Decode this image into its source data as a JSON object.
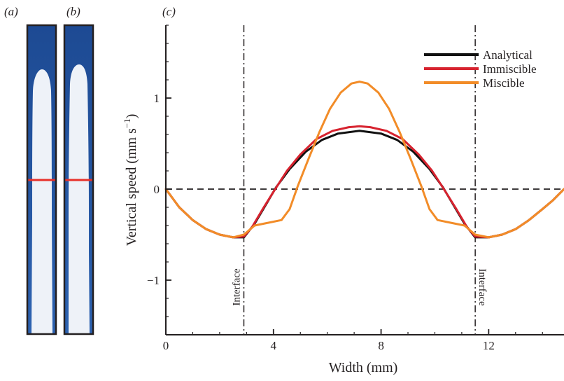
{
  "panels": {
    "a": {
      "label": "(a)"
    },
    "b": {
      "label": "(b)"
    },
    "c": {
      "label": "(c)"
    }
  },
  "colors": {
    "fluid_dark": "#1f4e96",
    "fluid_light": "#eef2f8",
    "marker_line": "#e8302a",
    "frame": "#231f20",
    "analytical": "#111111",
    "immiscible": "#d7232f",
    "miscible": "#f28c28"
  },
  "chart_data": {
    "type": "line",
    "xlabel": "Width (mm)",
    "ylabel_main": "Vertical speed (mm s",
    "ylabel_sup": "−1",
    "ylabel_close": ")",
    "xlim": [
      0,
      14.8
    ],
    "ylim": [
      -1.6,
      1.8
    ],
    "x_ticks": [
      0,
      4,
      8,
      12
    ],
    "x_tick_labels": [
      "0",
      "4",
      "8",
      "12"
    ],
    "y_ticks": [
      -1,
      0,
      1
    ],
    "y_tick_labels": [
      "−1",
      "0",
      "1"
    ],
    "zero_reference_line": true,
    "interfaces": [
      {
        "x": 2.9,
        "label": "Interface"
      },
      {
        "x": 11.5,
        "label": "Interface"
      }
    ],
    "legend_position": "top-right",
    "series": [
      {
        "name": "Analytical",
        "color": "#111111",
        "x": [
          0,
          0.5,
          1,
          1.5,
          2,
          2.5,
          2.9,
          3.3,
          3.7,
          4.1,
          4.6,
          5.2,
          5.8,
          6.4,
          7.2,
          8.0,
          8.6,
          9.2,
          9.8,
          10.3,
          10.7,
          11.1,
          11.5,
          12,
          12.5,
          13,
          13.5,
          14,
          14.4,
          14.8
        ],
        "y": [
          0,
          -0.2,
          -0.34,
          -0.44,
          -0.5,
          -0.53,
          -0.53,
          -0.38,
          -0.18,
          0.02,
          0.22,
          0.41,
          0.54,
          0.61,
          0.64,
          0.61,
          0.54,
          0.41,
          0.22,
          0.02,
          -0.18,
          -0.38,
          -0.53,
          -0.53,
          -0.5,
          -0.44,
          -0.34,
          -0.22,
          -0.12,
          0
        ]
      },
      {
        "name": "Immiscible",
        "color": "#d7232f",
        "x": [
          0,
          0.5,
          1,
          1.5,
          2,
          2.5,
          2.9,
          3.2,
          3.6,
          4.0,
          4.5,
          5.0,
          5.6,
          6.2,
          6.8,
          7.2,
          7.6,
          8.2,
          8.8,
          9.4,
          9.9,
          10.4,
          10.8,
          11.2,
          11.5,
          12,
          12.5,
          13,
          13.5,
          14,
          14.4,
          14.8
        ],
        "y": [
          0,
          -0.2,
          -0.34,
          -0.44,
          -0.5,
          -0.53,
          -0.52,
          -0.42,
          -0.22,
          -0.03,
          0.2,
          0.38,
          0.55,
          0.64,
          0.68,
          0.69,
          0.68,
          0.64,
          0.55,
          0.38,
          0.2,
          -0.03,
          -0.22,
          -0.42,
          -0.52,
          -0.53,
          -0.5,
          -0.44,
          -0.34,
          -0.22,
          -0.12,
          0
        ]
      },
      {
        "name": "Miscible",
        "color": "#f28c28",
        "x": [
          0,
          0.5,
          1,
          1.5,
          2,
          2.5,
          2.9,
          3.3,
          3.8,
          4.3,
          4.6,
          4.9,
          5.3,
          5.7,
          6.1,
          6.5,
          6.9,
          7.2,
          7.5,
          7.9,
          8.3,
          8.7,
          9.1,
          9.5,
          9.8,
          10.1,
          10.6,
          11.1,
          11.5,
          12,
          12.5,
          13,
          13.5,
          14,
          14.4,
          14.8
        ],
        "y": [
          0,
          -0.2,
          -0.34,
          -0.44,
          -0.5,
          -0.53,
          -0.5,
          -0.4,
          -0.37,
          -0.34,
          -0.22,
          0.03,
          0.33,
          0.62,
          0.88,
          1.06,
          1.16,
          1.18,
          1.16,
          1.06,
          0.88,
          0.62,
          0.33,
          0.03,
          -0.22,
          -0.34,
          -0.37,
          -0.4,
          -0.5,
          -0.53,
          -0.5,
          -0.44,
          -0.34,
          -0.22,
          -0.12,
          0
        ]
      }
    ]
  }
}
